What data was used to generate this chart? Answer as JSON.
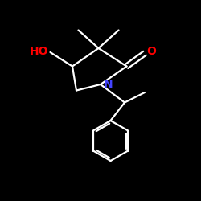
{
  "bg_color": "#000000",
  "bond_color": "#ffffff",
  "N_color": "#4444ff",
  "O_color": "#ff0000",
  "label_HO": "HO",
  "label_N": "N",
  "label_O": "O",
  "figsize": [
    2.5,
    2.5
  ],
  "dpi": 100,
  "lw": 1.6
}
